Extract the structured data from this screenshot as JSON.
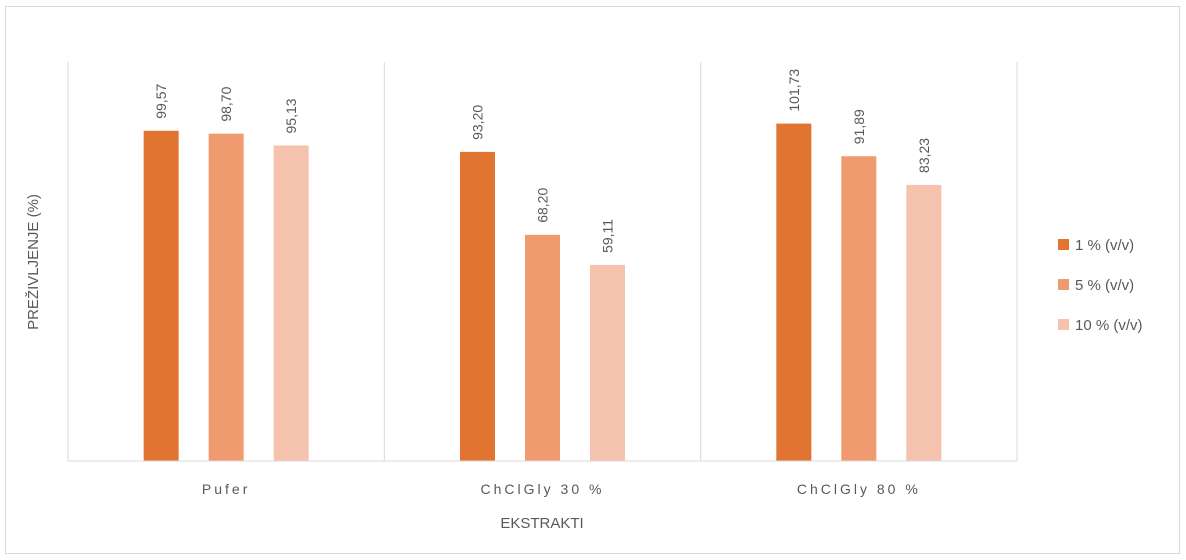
{
  "chart_data": {
    "type": "bar",
    "title": "",
    "xlabel": "EKSTRAKTI",
    "ylabel": "PREŽIVLJENJE (%)",
    "categories": [
      "Pufer",
      "ChClGly 30 %",
      "ChClGly 80 %"
    ],
    "series": [
      {
        "name": "1 % (v/v)",
        "color": "#e07430",
        "values": [
          99.57,
          93.2,
          101.73
        ],
        "labels": [
          "99,57",
          "93,20",
          "101,73"
        ]
      },
      {
        "name": "5 % (v/v)",
        "color": "#f09a6f",
        "values": [
          98.7,
          68.2,
          91.89
        ],
        "labels": [
          "98,70",
          "68,20",
          "91,89"
        ]
      },
      {
        "name": "10 % (v/v)",
        "color": "#f5c2ae",
        "values": [
          95.13,
          59.11,
          83.23
        ],
        "labels": [
          "95,13",
          "59,11",
          "83,23"
        ]
      }
    ],
    "ylim": [
      0,
      120
    ],
    "grid": false,
    "legend": "right"
  }
}
